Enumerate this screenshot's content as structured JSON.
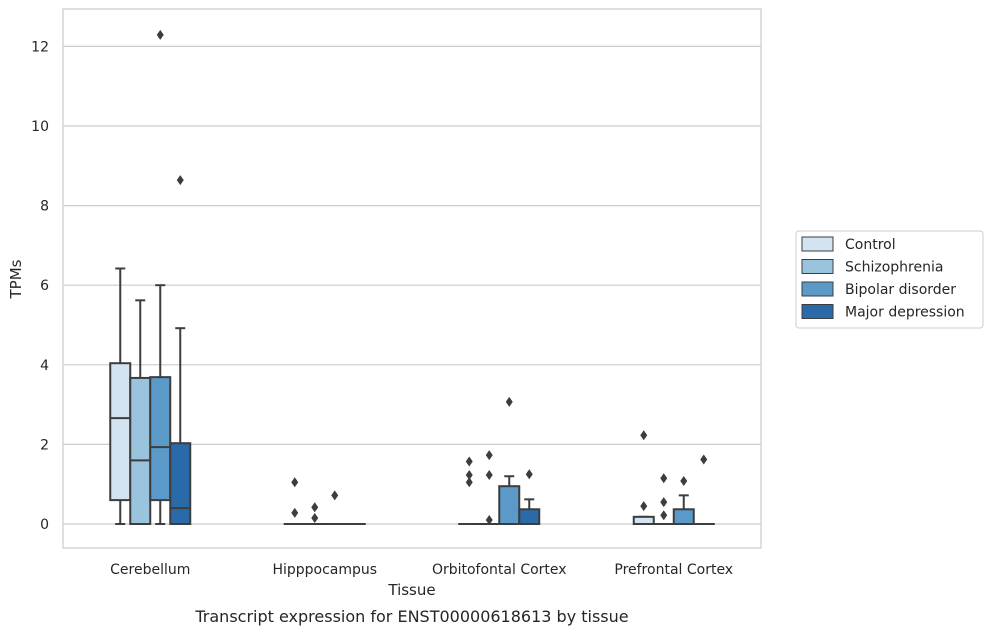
{
  "caption": "Transcript expression for ENST00000618613 by tissue",
  "chart_data": {
    "type": "box",
    "xlabel": "Tissue",
    "ylabel": "TPMs",
    "ylim": [
      -0.6,
      12.95
    ],
    "yticks": [
      0,
      2,
      4,
      6,
      8,
      10,
      12
    ],
    "grid": "horizontal",
    "legend_position": "right",
    "categories": [
      "Cerebellum",
      "Hipppocampus",
      "Orbitofontal Cortex",
      "Prefrontal Cortex"
    ],
    "series": [
      {
        "name": "Control",
        "color": "#d4e3f1",
        "boxes": [
          {
            "whislo": 0,
            "q1": 0.6,
            "med": 2.66,
            "q3": 4.04,
            "whishi": 6.42,
            "fliers": []
          },
          {
            "whislo": 0,
            "q1": 0,
            "med": 0,
            "q3": 0,
            "whishi": 0,
            "fliers": [
              1.05,
              0.28
            ]
          },
          {
            "whislo": 0,
            "q1": 0,
            "med": 0,
            "q3": 0,
            "whishi": 0,
            "fliers": [
              1.57,
              1.23,
              1.05
            ]
          },
          {
            "whislo": 0,
            "q1": 0,
            "med": 0,
            "q3": 0.18,
            "whishi": 0.18,
            "fliers": [
              2.23,
              0.45
            ]
          }
        ]
      },
      {
        "name": "Schizophrenia",
        "color": "#9ac3dd",
        "boxes": [
          {
            "whislo": 0,
            "q1": 0,
            "med": 1.6,
            "q3": 3.67,
            "whishi": 5.62,
            "fliers": []
          },
          {
            "whislo": 0,
            "q1": 0,
            "med": 0,
            "q3": 0,
            "whishi": 0,
            "fliers": [
              0.42,
              0.15
            ]
          },
          {
            "whislo": 0,
            "q1": 0,
            "med": 0,
            "q3": 0,
            "whishi": 0,
            "fliers": [
              1.73,
              1.23,
              0.1
            ]
          },
          {
            "whislo": 0,
            "q1": 0,
            "med": 0,
            "q3": 0,
            "whishi": 0,
            "fliers": [
              1.15,
              0.55,
              0.22
            ]
          }
        ]
      },
      {
        "name": "Bipolar disorder",
        "color": "#5b9ac8",
        "boxes": [
          {
            "whislo": 0,
            "q1": 0.6,
            "med": 1.93,
            "q3": 3.69,
            "whishi": 6.0,
            "fliers": [
              12.29
            ]
          },
          {
            "whislo": 0,
            "q1": 0,
            "med": 0,
            "q3": 0,
            "whishi": 0,
            "fliers": [
              0.72
            ]
          },
          {
            "whislo": 0,
            "q1": 0,
            "med": 0,
            "q3": 0.95,
            "whishi": 1.2,
            "fliers": [
              3.07
            ]
          },
          {
            "whislo": 0,
            "q1": 0,
            "med": 0,
            "q3": 0.37,
            "whishi": 0.72,
            "fliers": [
              1.08
            ]
          }
        ]
      },
      {
        "name": "Major depression",
        "color": "#2b6aa8",
        "boxes": [
          {
            "whislo": 0,
            "q1": 0,
            "med": 0.4,
            "q3": 2.03,
            "whishi": 4.92,
            "fliers": [
              8.64
            ]
          },
          {
            "whislo": 0,
            "q1": 0,
            "med": 0,
            "q3": 0,
            "whishi": 0,
            "fliers": []
          },
          {
            "whislo": 0,
            "q1": 0,
            "med": 0,
            "q3": 0.37,
            "whishi": 0.62,
            "fliers": [
              1.25
            ]
          },
          {
            "whislo": 0,
            "q1": 0,
            "med": 0,
            "q3": 0,
            "whishi": 0,
            "fliers": [
              1.62
            ]
          }
        ]
      }
    ]
  }
}
